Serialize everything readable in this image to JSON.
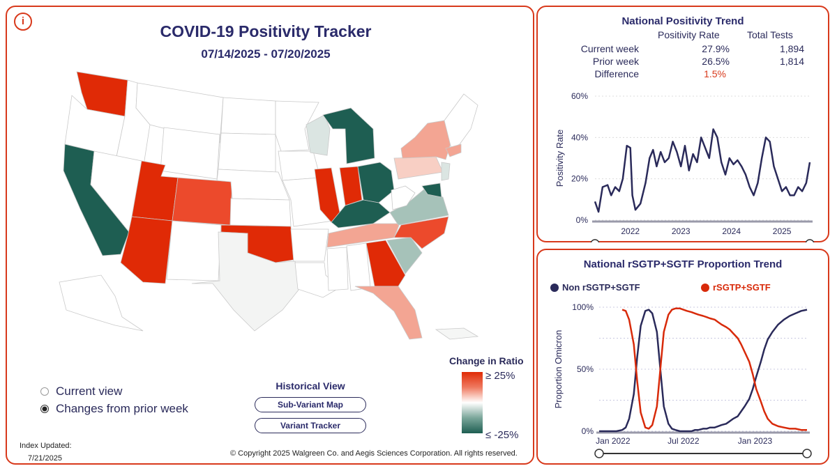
{
  "left": {
    "title": "COVID-19 Positivity Tracker",
    "date_range": "07/14/2025 - 07/20/2025",
    "info_icon": "i",
    "legend_title": "Change in Ratio",
    "legend_high": "≥ 25%",
    "legend_low": "≤ -25%",
    "views": [
      "Current view",
      "Changes from prior week"
    ],
    "historical_title": "Historical View",
    "btn_subvariant": "Sub-Variant Map",
    "btn_tracker": "Variant Tracker",
    "index_label": "Index Updated:",
    "index_date": "7/21/2025",
    "copyright": "© Copyright 2025 Walgreen Co. and Aegis Sciences Corporation. All rights reserved.",
    "colors": {
      "up_strong": "#e02a06",
      "up_mid": "#ec5a3c",
      "up_light": "#f3a593",
      "up_faint": "#f8cfc4",
      "neutral": "#f5f6f5",
      "down_light": "#dbe5e2",
      "down_mid": "#a6c2b9",
      "down_strong": "#1e5e52"
    }
  },
  "trend": {
    "title": "National Positivity Trend",
    "col_rate": "Positivity Rate",
    "col_tests": "Total Tests",
    "rows": [
      {
        "label": "Current week",
        "rate": "27.9%",
        "tests": "1,894"
      },
      {
        "label": "Prior week",
        "rate": "26.5%",
        "tests": "1,814"
      },
      {
        "label": "Difference",
        "rate": "1.5%",
        "tests": ""
      }
    ],
    "ylabel": "Positivity Rate",
    "chart_data": {
      "type": "line",
      "title": "National Positivity Trend",
      "ylabel": "Positivity Rate",
      "ylim": [
        0,
        60
      ],
      "yticks": [
        "0%",
        "20%",
        "40%",
        "60%"
      ],
      "xticks": [
        "2022",
        "2023",
        "2024",
        "2025"
      ],
      "x": [
        2021.3,
        2021.37,
        2021.45,
        2021.55,
        2021.62,
        2021.7,
        2021.78,
        2021.85,
        2021.93,
        2022.0,
        2022.04,
        2022.1,
        2022.2,
        2022.3,
        2022.38,
        2022.45,
        2022.52,
        2022.6,
        2022.68,
        2022.76,
        2022.84,
        2022.92,
        2023.0,
        2023.08,
        2023.16,
        2023.24,
        2023.32,
        2023.4,
        2023.48,
        2023.56,
        2023.64,
        2023.72,
        2023.8,
        2023.88,
        2023.96,
        2024.04,
        2024.12,
        2024.2,
        2024.28,
        2024.36,
        2024.44,
        2024.52,
        2024.6,
        2024.68,
        2024.76,
        2024.84,
        2024.92,
        2025.0,
        2025.08,
        2025.16,
        2025.24,
        2025.32,
        2025.4,
        2025.48,
        2025.55
      ],
      "values": [
        9,
        4,
        16,
        17,
        12,
        16,
        14,
        20,
        36,
        35,
        12,
        5,
        8,
        18,
        30,
        34,
        26,
        33,
        28,
        30,
        38,
        33,
        26,
        36,
        24,
        32,
        28,
        40,
        35,
        30,
        44,
        40,
        28,
        22,
        30,
        27,
        29,
        26,
        22,
        16,
        12,
        18,
        30,
        40,
        38,
        26,
        20,
        14,
        16,
        12,
        12,
        16,
        14,
        18,
        28
      ],
      "slider": "2021-2025"
    }
  },
  "sgtf": {
    "title": "National rSGTP+SGTF Proportion Trend",
    "legend_non": "Non rSGTP+SGTF",
    "legend_yes": "rSGTP+SGTF",
    "ylabel": "Proportion Omicron",
    "chart_data": {
      "type": "line",
      "title": "National rSGTP+SGTF Proportion Trend",
      "ylabel": "Proportion Omicron",
      "ylim": [
        0,
        100
      ],
      "yticks": [
        "0%",
        "50%",
        "100%"
      ],
      "xticks": [
        "Jan 2022",
        "Jul 2022",
        "Jan 2023"
      ],
      "x": [
        0,
        0.5,
        1,
        1.5,
        2,
        2.3,
        2.6,
        3,
        3.3,
        3.6,
        4,
        4.3,
        4.6,
        5,
        5.3,
        5.6,
        6,
        6.3,
        6.6,
        7,
        7.3,
        7.6,
        8,
        8.3,
        8.6,
        9,
        9.3,
        9.6,
        10,
        10.3,
        10.6,
        11,
        11.3,
        11.6,
        12,
        12.3,
        12.6,
        13,
        13.3,
        13.6,
        14,
        14.3,
        14.6,
        15,
        15.5,
        16,
        16.5,
        17,
        17.5,
        18
      ],
      "series": [
        {
          "name": "Non rSGTP+SGTF",
          "color": "#2a2a5a",
          "values": [
            0,
            0,
            0,
            0,
            1,
            3,
            10,
            30,
            60,
            85,
            97,
            98,
            95,
            80,
            50,
            20,
            6,
            2,
            1,
            0,
            0,
            0,
            0,
            1,
            1,
            2,
            2,
            3,
            3,
            4,
            5,
            6,
            8,
            10,
            12,
            16,
            20,
            26,
            34,
            44,
            56,
            66,
            74,
            80,
            86,
            90,
            93,
            95,
            97,
            98
          ]
        },
        {
          "name": "rSGTP+SGTF",
          "color": "#d82a0a",
          "values": [
            null,
            null,
            null,
            null,
            98,
            97,
            90,
            70,
            40,
            15,
            3,
            2,
            5,
            20,
            50,
            80,
            94,
            98,
            99,
            99,
            98,
            97,
            96,
            95,
            94,
            93,
            92,
            91,
            90,
            88,
            86,
            84,
            82,
            79,
            75,
            70,
            64,
            56,
            46,
            34,
            24,
            16,
            10,
            6,
            4,
            3,
            2,
            2,
            1,
            1
          ]
        }
      ]
    }
  }
}
